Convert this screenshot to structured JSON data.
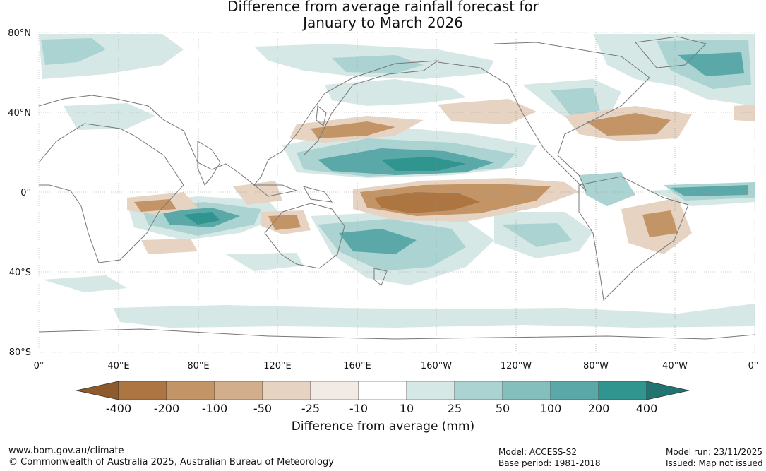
{
  "title": {
    "line1": "Difference from average rainfall forecast for",
    "line2": "January to March 2026"
  },
  "map": {
    "lat_labels": [
      "80°N",
      "40°N",
      "0°",
      "40°S",
      "80°S"
    ],
    "lon_labels": [
      "0°",
      "40°E",
      "80°E",
      "120°E",
      "160°E",
      "160°W",
      "120°W",
      "80°W",
      "40°W",
      "0°"
    ],
    "wet_color": "#31958f",
    "dry_color": "#a86d35"
  },
  "colorbar": {
    "ticks": [
      "-400",
      "-200",
      "-100",
      "-50",
      "-25",
      "-10",
      "10",
      "25",
      "50",
      "100",
      "200",
      "400"
    ],
    "colors": [
      "#8c5a2b",
      "#ad7542",
      "#c39466",
      "#d3ae8c",
      "#e6d3c1",
      "#f2ebe5",
      "#ffffff",
      "#d5e8e6",
      "#aad3d1",
      "#84bfbd",
      "#5aa8a7",
      "#31958f",
      "#227470"
    ],
    "label": "Difference from average (mm)"
  },
  "footer": {
    "website": "www.bom.gov.au/climate",
    "copyright": "© Commonwealth of Australia 2025, Australian Bureau of Meteorology",
    "model": "Model: ACCESS-S2",
    "base_period": "Base period: 1981-2018",
    "model_run": "Model run: 23/11/2025",
    "issued": "Issued: Map not issued"
  }
}
